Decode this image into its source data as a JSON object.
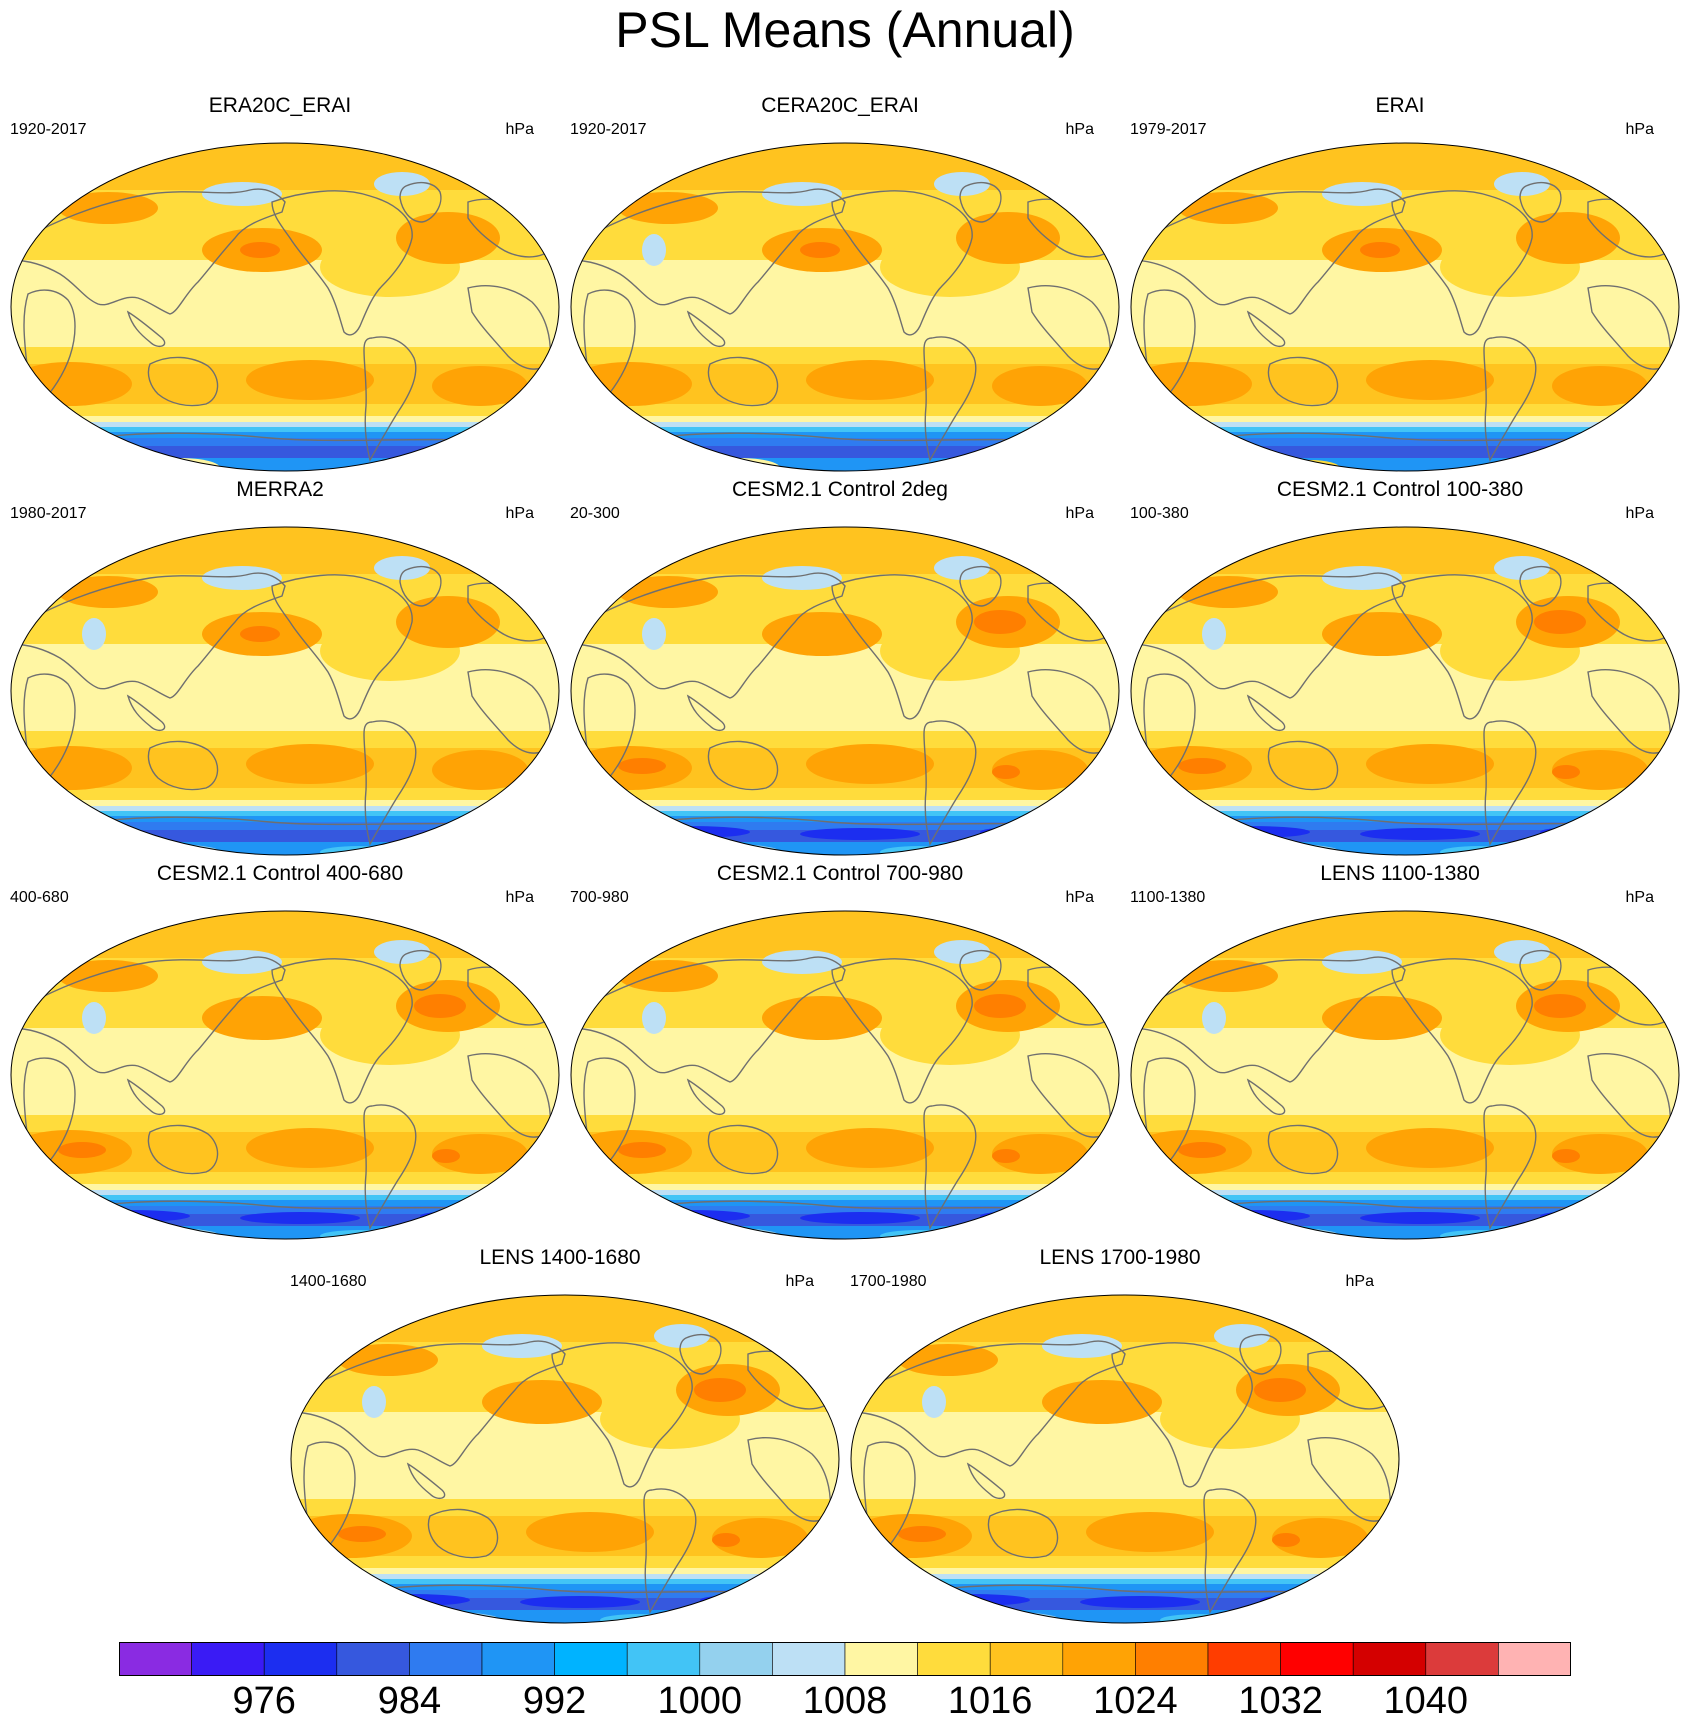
{
  "title": "PSL Means (Annual)",
  "panels": [
    {
      "title": "ERA20C_ERAI",
      "left": "1920-2017",
      "right": "hPa",
      "variant": "era20c"
    },
    {
      "title": "CERA20C_ERAI",
      "left": "1920-2017",
      "right": "hPa",
      "variant": "cera20c"
    },
    {
      "title": "ERAI",
      "left": "1979-2017",
      "right": "hPa",
      "variant": "erai"
    },
    {
      "title": "MERRA2",
      "left": "1980-2017",
      "right": "hPa",
      "variant": "merra2"
    },
    {
      "title": "CESM2.1 Control 2deg",
      "left": "20-300",
      "right": "hPa",
      "variant": "cesm"
    },
    {
      "title": "CESM2.1 Control 100-380",
      "left": "100-380",
      "right": "hPa",
      "variant": "cesm"
    },
    {
      "title": "CESM2.1 Control 400-680",
      "left": "400-680",
      "right": "hPa",
      "variant": "cesm"
    },
    {
      "title": "CESM2.1 Control 700-980",
      "left": "700-980",
      "right": "hPa",
      "variant": "cesm"
    },
    {
      "title": "LENS 1100-1380",
      "left": "1100-1380",
      "right": "hPa",
      "variant": "lens"
    },
    {
      "title": "LENS 1400-1680",
      "left": "1400-1680",
      "right": "hPa",
      "variant": "lens"
    },
    {
      "title": "LENS 1700-1980",
      "left": "1700-1980",
      "right": "hPa",
      "variant": "lens"
    }
  ],
  "colorbar": {
    "colors": [
      "#8a2be2",
      "#3a1bf5",
      "#1c2ef0",
      "#3658de",
      "#2f7bf0",
      "#1f95f5",
      "#00b3ff",
      "#42c4f6",
      "#94d1ee",
      "#bde0f5",
      "#fff6a3",
      "#ffdc3c",
      "#ffc31f",
      "#ffa305",
      "#ff7f00",
      "#ff3d00",
      "#ff0000",
      "#d40000",
      "#dc3b3b",
      "#ffb3b3"
    ],
    "labels": [
      "976",
      "984",
      "992",
      "1000",
      "1008",
      "1016",
      "1024",
      "1032",
      "1040"
    ]
  }
}
